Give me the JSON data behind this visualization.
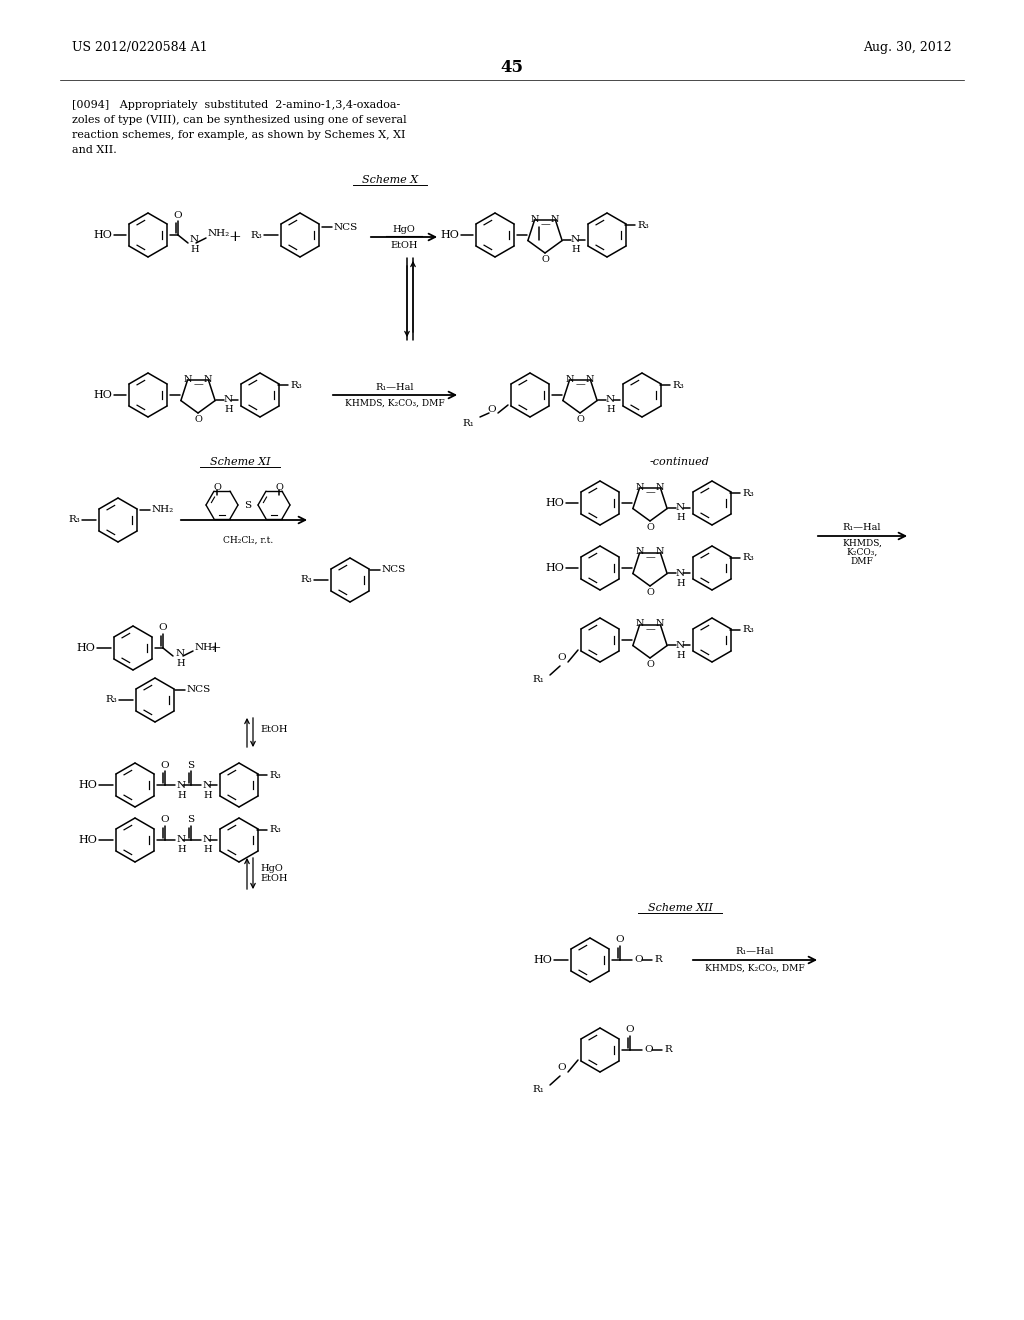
{
  "page_width": 10.24,
  "page_height": 13.2,
  "dpi": 100,
  "bg": "#ffffff",
  "header_left": "US 2012/0220584 A1",
  "header_right": "Aug. 30, 2012",
  "page_number": "45",
  "para_lines": [
    "[0094]   Appropriately  substituted  2-amino-1,3,4-oxadoa-",
    "zoles of type (VIII), can be synthesized using one of several",
    "reaction schemes, for example, as shown by Schemes X, XI",
    "and XII."
  ]
}
